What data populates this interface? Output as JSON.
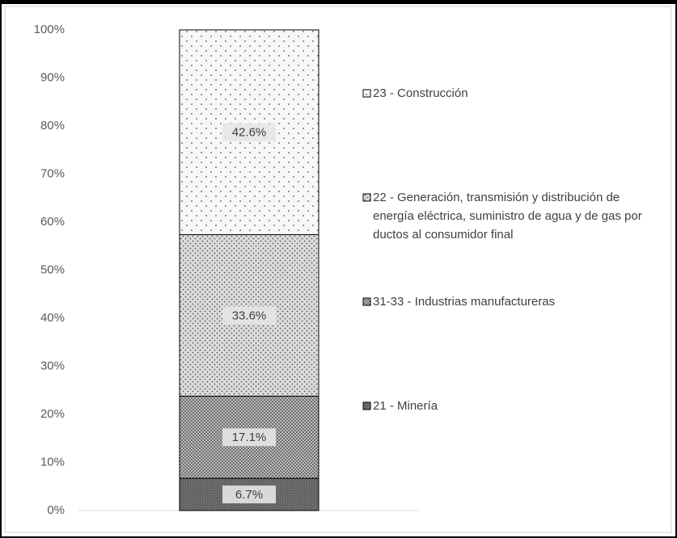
{
  "chart_data": {
    "type": "stacked_bar_100",
    "categories": [
      null
    ],
    "series": [
      {
        "name": "21 - Minería",
        "color": "#8c8c8c",
        "values": [
          6.7
        ],
        "value_labels": [
          "6.7%"
        ]
      },
      {
        "name": "31-33 - Industrias manufactureras",
        "color": "#bdbdbd",
        "values": [
          17.1
        ],
        "value_labels": [
          "17.1%"
        ]
      },
      {
        "name": "22 - Generación, transmisión y distribución de energía eléctrica, suministro de agua y de gas por ductos al consumidor final",
        "color": "#dcdcdc",
        "values": [
          33.6
        ],
        "value_labels": [
          "33.6%"
        ]
      },
      {
        "name": "23 - Construcción",
        "color": "#f7f7f7",
        "values": [
          42.6
        ],
        "value_labels": [
          "42.6%"
        ]
      }
    ],
    "ylim": [
      0,
      100
    ],
    "yticks": [
      {
        "value": 0,
        "label": "0%"
      },
      {
        "value": 10,
        "label": "10%"
      },
      {
        "value": 20,
        "label": "20%"
      },
      {
        "value": 30,
        "label": "30%"
      },
      {
        "value": 40,
        "label": "40%"
      },
      {
        "value": 50,
        "label": "50%"
      },
      {
        "value": 60,
        "label": "60%"
      },
      {
        "value": 70,
        "label": "70%"
      },
      {
        "value": 80,
        "label": "80%"
      },
      {
        "value": 90,
        "label": "90%"
      },
      {
        "value": 100,
        "label": "100%"
      }
    ],
    "grid": false,
    "legend": "right"
  }
}
